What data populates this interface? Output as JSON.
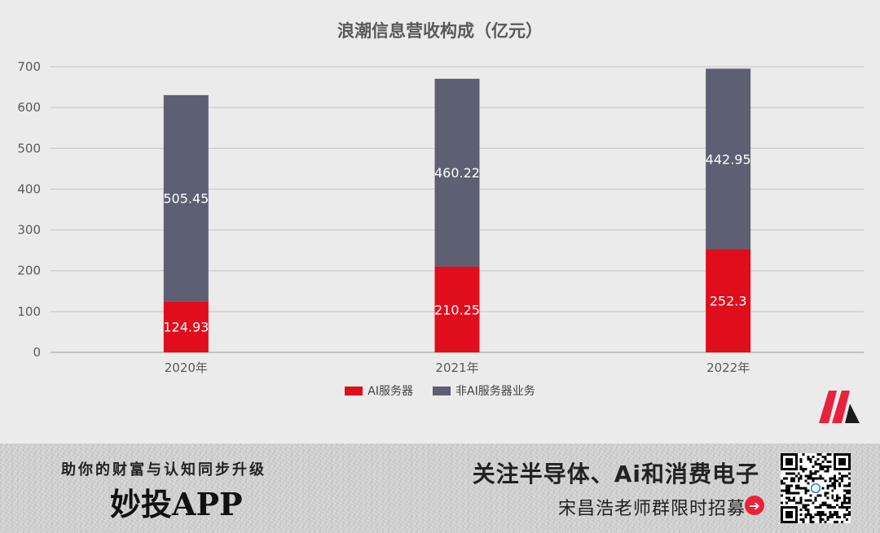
{
  "chart_data": {
    "type": "bar",
    "stacked": true,
    "title": "浪潮信息营收构成（亿元）",
    "categories": [
      "2020年",
      "2021年",
      "2022年"
    ],
    "series": [
      {
        "name": "AI服务器",
        "color": "#e00d1c",
        "values": [
          124.93,
          210.25,
          252.3
        ],
        "labels": [
          "124.93",
          "210.25",
          "252.3"
        ]
      },
      {
        "name": "非AI服务器业务",
        "color": "#5d5f73",
        "values": [
          505.45,
          460.22,
          442.95
        ],
        "labels": [
          "505.45",
          "460.22",
          "442.95"
        ]
      }
    ],
    "ylim": [
      0,
      700
    ],
    "yticks": [
      0,
      100,
      200,
      300,
      400,
      500,
      600,
      700
    ],
    "grid": true,
    "legend": "bottom"
  },
  "legend": {
    "ai_label": "AI服务器",
    "non_ai_label": "非AI服务器业务"
  },
  "banner": {
    "slogan": "助你的财富与认知同步升级",
    "app_name": "妙投APP",
    "promo_line1": "关注半导体、Ai和消费电子",
    "promo_line2": "宋昌浩老师群限时招募",
    "arrow_icon": "➔"
  },
  "icons": {
    "brand_logo": "m-logo-icon",
    "qr_code": "qr-code-icon",
    "arrow": "arrow-right-icon"
  }
}
